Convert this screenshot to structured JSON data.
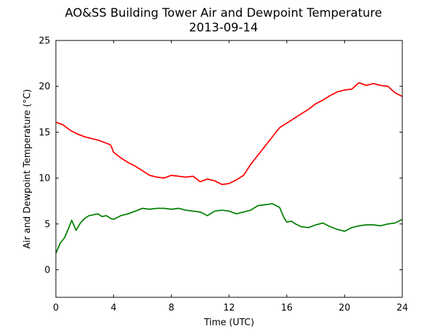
{
  "chart_data": {
    "type": "line",
    "title": "AO&SS Building Tower Air and Dewpoint Temperature",
    "subtitle": "2013-09-14",
    "xlabel": "Time (UTC)",
    "ylabel": "Air and Dewpoint Temperature (°C)",
    "xlim": [
      0,
      24
    ],
    "ylim": [
      -3,
      25
    ],
    "xticks": [
      0,
      4,
      8,
      12,
      16,
      20,
      24
    ],
    "yticks": [
      0,
      5,
      10,
      15,
      20,
      25
    ],
    "grid": false,
    "series": [
      {
        "color": "#ff0000",
        "x": [
          0,
          0.5,
          1,
          1.5,
          2,
          2.5,
          3,
          3.5,
          3.8,
          4,
          4.5,
          5,
          5.5,
          6,
          6.5,
          7,
          7.5,
          8,
          8.5,
          9,
          9.5,
          10,
          10.5,
          11,
          11.5,
          12,
          12.5,
          13,
          13.5,
          14,
          14.5,
          15,
          15.5,
          16,
          16.5,
          17,
          17.5,
          18,
          18.5,
          19,
          19.5,
          20,
          20.5,
          21,
          21.5,
          22,
          22.5,
          23,
          23.5,
          24
        ],
        "values": [
          16.1,
          15.8,
          15.2,
          14.8,
          14.5,
          14.3,
          14.1,
          13.8,
          13.6,
          12.8,
          12.2,
          11.7,
          11.3,
          10.8,
          10.3,
          10.1,
          10.0,
          10.3,
          10.2,
          10.1,
          10.2,
          9.6,
          9.9,
          9.7,
          9.3,
          9.4,
          9.8,
          10.3,
          11.5,
          12.5,
          13.5,
          14.5,
          15.5,
          16.0,
          16.5,
          17.0,
          17.5,
          18.1,
          18.5,
          19.0,
          19.4,
          19.6,
          19.7,
          20.4,
          20.1,
          20.3,
          20.1,
          20.0,
          19.3,
          18.9
        ]
      },
      {
        "color": "#008000",
        "x": [
          0,
          0.3,
          0.6,
          0.9,
          1.1,
          1.4,
          1.7,
          2,
          2.3,
          2.6,
          2.9,
          3.2,
          3.5,
          3.8,
          4,
          4.5,
          5,
          5.5,
          6,
          6.5,
          7,
          7.5,
          8,
          8.5,
          9,
          9.5,
          10,
          10.5,
          11,
          11.5,
          12,
          12.5,
          13,
          13.5,
          14,
          14.5,
          15,
          15.5,
          15.8,
          16,
          16.3,
          16.6,
          17,
          17.5,
          18,
          18.5,
          19,
          19.5,
          20,
          20.5,
          21,
          21.5,
          22,
          22.5,
          23,
          23.5,
          24
        ],
        "values": [
          1.8,
          2.9,
          3.5,
          4.6,
          5.4,
          4.3,
          5.1,
          5.6,
          5.9,
          6.0,
          6.1,
          5.8,
          5.9,
          5.6,
          5.5,
          5.9,
          6.1,
          6.4,
          6.7,
          6.6,
          6.7,
          6.7,
          6.6,
          6.7,
          6.5,
          6.4,
          6.3,
          5.9,
          6.4,
          6.5,
          6.4,
          6.1,
          6.3,
          6.5,
          7.0,
          7.1,
          7.2,
          6.8,
          5.7,
          5.2,
          5.3,
          5.0,
          4.7,
          4.6,
          4.9,
          5.1,
          4.7,
          4.4,
          4.2,
          4.6,
          4.8,
          4.9,
          4.9,
          4.8,
          5.0,
          5.1,
          5.5
        ]
      }
    ]
  }
}
